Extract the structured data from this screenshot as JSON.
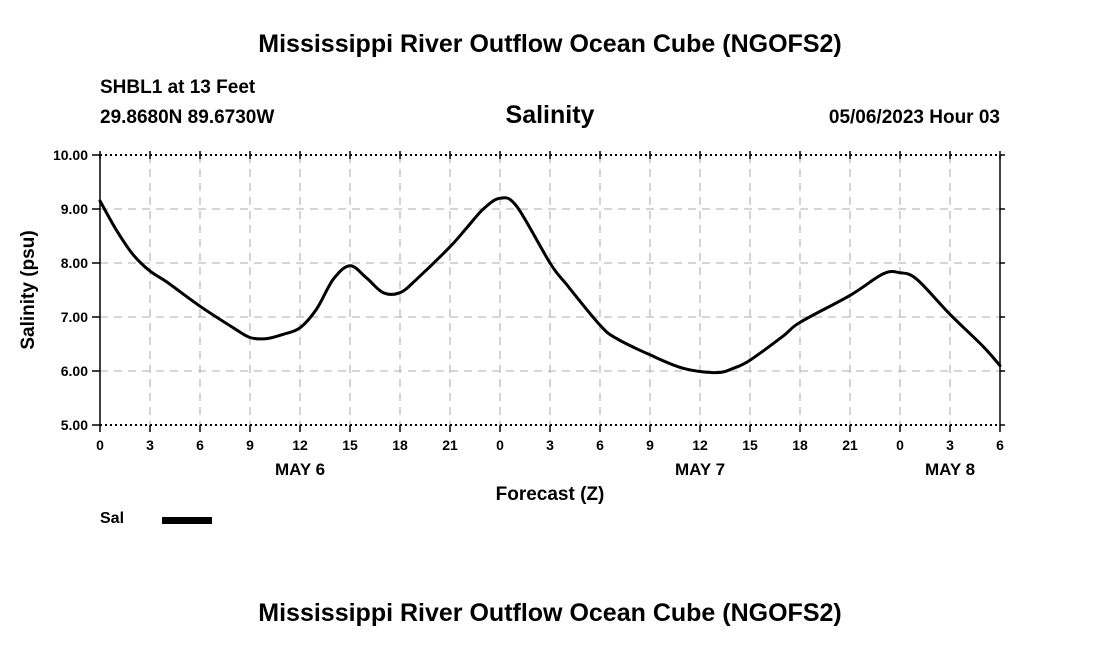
{
  "header": {
    "title": "Mississippi River Outflow Ocean Cube (NGOFS2)",
    "station": "SHBL1 at 13 Feet",
    "coords": "29.8680N  89.6730W",
    "variable": "Salinity",
    "run_time": "05/06/2023 Hour 03"
  },
  "footer": {
    "title": "Mississippi River Outflow Ocean Cube (NGOFS2)"
  },
  "legend": {
    "label": "Sal",
    "position": "bottom-left"
  },
  "chart_data": {
    "type": "line",
    "title": "Salinity",
    "xlabel": "Forecast (Z)",
    "ylabel": "Salinity (psu)",
    "ylim": [
      5.0,
      10.0
    ],
    "xlim": [
      "2023-05-06T00:00Z",
      "2023-05-08T06:00Z"
    ],
    "x_tick_labels": [
      "0",
      "3",
      "6",
      "9",
      "12",
      "15",
      "18",
      "21",
      "0",
      "3",
      "6",
      "9",
      "12",
      "15",
      "18",
      "21",
      "0",
      "3",
      "6"
    ],
    "y_tick_labels": [
      "5.00",
      "6.00",
      "7.00",
      "8.00",
      "9.00",
      "10.00"
    ],
    "date_labels": [
      {
        "text": "MAY 6",
        "at": "2023-05-06T12:00Z"
      },
      {
        "text": "MAY 7",
        "at": "2023-05-07T12:00Z"
      },
      {
        "text": "MAY 8",
        "at": "2023-05-08T03:00Z"
      }
    ],
    "grid": true,
    "series": [
      {
        "name": "Sal",
        "color": "#000000",
        "x": [
          "2023-05-06T00:00Z",
          "2023-05-06T01:00Z",
          "2023-05-06T02:00Z",
          "2023-05-06T03:00Z",
          "2023-05-06T04:00Z",
          "2023-05-06T06:00Z",
          "2023-05-06T08:00Z",
          "2023-05-06T09:00Z",
          "2023-05-06T10:00Z",
          "2023-05-06T11:00Z",
          "2023-05-06T12:00Z",
          "2023-05-06T13:00Z",
          "2023-05-06T14:00Z",
          "2023-05-06T15:00Z",
          "2023-05-06T16:00Z",
          "2023-05-06T17:00Z",
          "2023-05-06T18:00Z",
          "2023-05-06T19:00Z",
          "2023-05-06T21:00Z",
          "2023-05-06T22:00Z",
          "2023-05-06T23:00Z",
          "2023-05-07T00:00Z",
          "2023-05-07T01:00Z",
          "2023-05-07T03:00Z",
          "2023-05-07T04:00Z",
          "2023-05-07T06:00Z",
          "2023-05-07T07:00Z",
          "2023-05-07T09:00Z",
          "2023-05-07T11:00Z",
          "2023-05-07T13:00Z",
          "2023-05-07T14:00Z",
          "2023-05-07T15:00Z",
          "2023-05-07T17:00Z",
          "2023-05-07T18:00Z",
          "2023-05-07T21:00Z",
          "2023-05-07T23:00Z",
          "2023-05-08T00:00Z",
          "2023-05-08T01:00Z",
          "2023-05-08T03:00Z",
          "2023-05-08T05:00Z",
          "2023-05-08T06:00Z"
        ],
        "values": [
          9.15,
          8.6,
          8.15,
          7.85,
          7.65,
          7.2,
          6.8,
          6.62,
          6.6,
          6.68,
          6.8,
          7.15,
          7.7,
          7.95,
          7.72,
          7.45,
          7.45,
          7.7,
          8.3,
          8.65,
          9.0,
          9.2,
          9.05,
          8.0,
          7.6,
          6.85,
          6.6,
          6.3,
          6.05,
          5.97,
          6.05,
          6.2,
          6.65,
          6.9,
          7.4,
          7.8,
          7.82,
          7.7,
          7.05,
          6.45,
          6.1
        ]
      }
    ]
  }
}
